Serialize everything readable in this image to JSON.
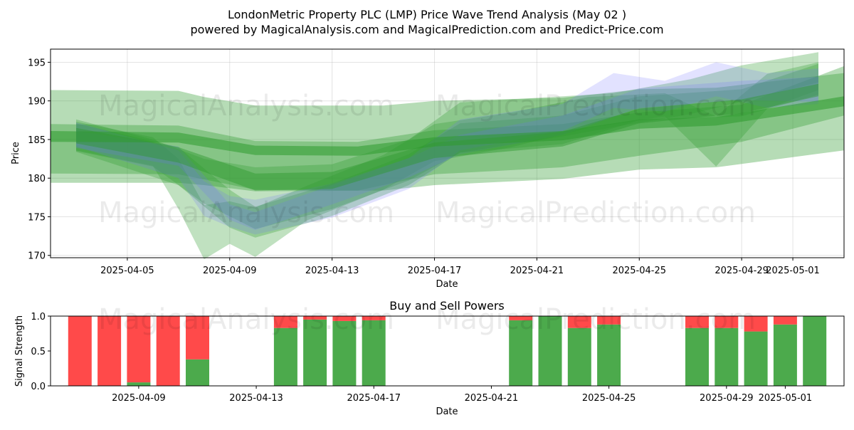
{
  "figure": {
    "title_line1": "LondonMetric Property PLC (LMP) Price Wave Trend Analysis (May 02 )",
    "title_line2": "powered by MagicalAnalysis.com and MagicalPrediction.com and Predict-Price.com",
    "watermarks": [
      "MagicalAnalysis.com",
      "MagicalPrediction.com"
    ]
  },
  "chart_data": [
    {
      "type": "area",
      "xlabel": "Date",
      "ylabel": "Price",
      "xlim": [
        "2025-04-02",
        "2025-05-03"
      ],
      "ylim": [
        169.7,
        196.7
      ],
      "y_ticks": [
        170,
        175,
        180,
        185,
        190,
        195
      ],
      "x_ticks": [
        "2025-04-05",
        "2025-04-09",
        "2025-04-13",
        "2025-04-17",
        "2025-04-21",
        "2025-04-25",
        "2025-04-29",
        "2025-05-01"
      ],
      "grid": true,
      "colors": {
        "green": "#2e9a2e",
        "blue": "#7070ff"
      },
      "series": [
        {
          "color": "green",
          "opacity": 0.35,
          "x": [
            "2025-04-02",
            "2025-04-07",
            "2025-04-08",
            "2025-04-10",
            "2025-04-15",
            "2025-04-17",
            "2025-04-22",
            "2025-04-25",
            "2025-04-28",
            "2025-05-03"
          ],
          "upper": [
            191.4,
            191.3,
            190.5,
            189.4,
            189.4,
            190.0,
            190.4,
            191.5,
            191.7,
            193.6
          ],
          "lower": [
            179.4,
            179.4,
            179.1,
            178.3,
            178.4,
            179.1,
            179.9,
            181.1,
            181.4,
            183.6
          ]
        },
        {
          "color": "green",
          "opacity": 0.35,
          "x": [
            "2025-04-02",
            "2025-04-07",
            "2025-04-10",
            "2025-04-14",
            "2025-04-17",
            "2025-04-22",
            "2025-04-25",
            "2025-04-29",
            "2025-05-03"
          ],
          "upper": [
            187.0,
            186.8,
            184.8,
            184.7,
            186.2,
            187.0,
            188.5,
            189.5,
            194.5
          ],
          "lower": [
            180.6,
            180.5,
            178.5,
            178.4,
            180.5,
            181.4,
            182.9,
            184.7,
            188.1
          ]
        },
        {
          "color": "green",
          "opacity": 0.3,
          "x": [
            "2025-04-03",
            "2025-04-06",
            "2025-04-08",
            "2025-04-10",
            "2025-04-13",
            "2025-04-16",
            "2025-04-18",
            "2025-04-22",
            "2025-04-24",
            "2025-04-27",
            "2025-04-29",
            "2025-05-02"
          ],
          "upper": [
            187.6,
            185.0,
            182.5,
            181.4,
            181.8,
            185.0,
            189.8,
            190.6,
            191.0,
            192.8,
            194.6,
            196.3
          ],
          "lower": [
            183.5,
            181.5,
            176.7,
            173.4,
            176.0,
            179.7,
            183.3,
            185.4,
            186.6,
            188.3,
            189.9,
            192.4
          ]
        },
        {
          "color": "green",
          "opacity": 0.3,
          "x": [
            "2025-04-03",
            "2025-04-06",
            "2025-04-07",
            "2025-04-08",
            "2025-04-09",
            "2025-04-10",
            "2025-04-12",
            "2025-04-15",
            "2025-04-17",
            "2025-04-20",
            "2025-04-23",
            "2025-04-26",
            "2025-04-28",
            "2025-04-30",
            "2025-05-02"
          ],
          "upper": [
            187.3,
            185.3,
            182.5,
            176.5,
            177.0,
            176.2,
            179.0,
            183.0,
            187.0,
            188.5,
            190.5,
            191.0,
            188.0,
            193.5,
            195.0
          ],
          "lower": [
            183.6,
            181.6,
            176.0,
            169.5,
            171.5,
            169.8,
            174.5,
            178.5,
            182.2,
            184.0,
            186.5,
            188.0,
            181.5,
            189.0,
            191.4
          ]
        },
        {
          "color": "green",
          "opacity": 0.3,
          "x": [
            "2025-04-03",
            "2025-04-07",
            "2025-04-09",
            "2025-04-10",
            "2025-04-13",
            "2025-04-16",
            "2025-04-18",
            "2025-04-22",
            "2025-04-25",
            "2025-04-29",
            "2025-05-02"
          ],
          "upper": [
            187.1,
            184.0,
            178.5,
            176.3,
            179.3,
            183.1,
            187.1,
            188.1,
            190.6,
            191.5,
            194.8
          ],
          "lower": [
            183.4,
            179.1,
            173.6,
            172.3,
            175.1,
            179.1,
            183.3,
            184.4,
            187.5,
            188.0,
            190.8
          ]
        },
        {
          "color": "blue",
          "opacity": 0.2,
          "x": [
            "2025-04-03",
            "2025-04-07",
            "2025-04-08",
            "2025-04-09",
            "2025-04-10",
            "2025-04-13",
            "2025-04-16",
            "2025-04-18",
            "2025-04-22",
            "2025-04-24",
            "2025-04-26",
            "2025-04-28",
            "2025-04-30",
            "2025-05-02"
          ],
          "upper": [
            187.2,
            183.6,
            179.6,
            177.7,
            177.2,
            179.3,
            182.6,
            187.6,
            189.6,
            193.6,
            192.6,
            195.0,
            193.6,
            194.2
          ],
          "lower": [
            184.1,
            180.0,
            175.1,
            173.7,
            172.7,
            174.9,
            178.6,
            183.6,
            186.1,
            189.1,
            188.6,
            190.6,
            189.1,
            189.6
          ]
        },
        {
          "color": "blue",
          "opacity": 0.2,
          "x": [
            "2025-04-03",
            "2025-04-07",
            "2025-04-09",
            "2025-04-10",
            "2025-04-13",
            "2025-04-16",
            "2025-04-18",
            "2025-04-22",
            "2025-04-25",
            "2025-04-29",
            "2025-05-02"
          ],
          "upper": [
            186.1,
            184.1,
            176.6,
            175.6,
            179.1,
            182.6,
            185.6,
            188.1,
            191.6,
            192.6,
            193.1
          ],
          "lower": [
            183.9,
            181.6,
            174.6,
            173.3,
            176.6,
            180.1,
            183.1,
            185.6,
            189.1,
            190.1,
            189.9
          ]
        },
        {
          "color": "green",
          "opacity": 0.55,
          "x": [
            "2025-04-02",
            "2025-04-07",
            "2025-04-10",
            "2025-04-14",
            "2025-04-17",
            "2025-04-22",
            "2025-04-25",
            "2025-04-28",
            "2025-05-03"
          ],
          "upper": [
            186.1,
            185.9,
            184.2,
            184.1,
            185.3,
            186.1,
            187.6,
            187.9,
            190.6
          ],
          "lower": [
            184.7,
            184.6,
            183.0,
            182.9,
            184.1,
            184.9,
            186.4,
            186.8,
            189.3
          ]
        },
        {
          "color": "green",
          "opacity": 0.45,
          "x": [
            "2025-04-03",
            "2025-04-07",
            "2025-04-10",
            "2025-04-13",
            "2025-04-17",
            "2025-04-22",
            "2025-04-25",
            "2025-04-29",
            "2025-05-02"
          ],
          "upper": [
            186.5,
            184.0,
            180.6,
            180.8,
            184.6,
            186.0,
            189.0,
            190.2,
            192.2
          ],
          "lower": [
            184.5,
            182.0,
            178.4,
            178.6,
            182.6,
            184.1,
            187.1,
            188.4,
            190.6
          ]
        }
      ]
    },
    {
      "type": "bar",
      "title": "Buy and Sell Powers",
      "xlabel": "Date",
      "ylabel": "Signal Strength",
      "ylim": [
        0,
        1
      ],
      "y_ticks": [
        "0.0",
        "0.5",
        "1.0"
      ],
      "x_ticks": [
        "2025-04-09",
        "2025-04-13",
        "2025-04-17",
        "2025-04-21",
        "2025-04-25",
        "2025-04-29",
        "2025-05-01"
      ],
      "xlim": [
        "2025-04-06",
        "2025-05-03"
      ],
      "colors": {
        "buy": "#4caa4c",
        "sell": "#ff4a4a"
      },
      "x": [
        "2025-04-07",
        "2025-04-08",
        "2025-04-09",
        "2025-04-10",
        "2025-04-11",
        "2025-04-14",
        "2025-04-15",
        "2025-04-16",
        "2025-04-17",
        "2025-04-22",
        "2025-04-23",
        "2025-04-24",
        "2025-04-25",
        "2025-04-28",
        "2025-04-29",
        "2025-04-30",
        "2025-05-01",
        "2025-05-02"
      ],
      "buy": [
        0.0,
        0.0,
        0.05,
        0.0,
        0.38,
        0.83,
        0.95,
        0.93,
        0.94,
        0.94,
        1.0,
        0.83,
        0.88,
        0.83,
        0.83,
        0.78,
        0.88,
        1.0
      ],
      "sell": [
        1.0,
        1.0,
        0.95,
        1.0,
        0.62,
        0.17,
        0.05,
        0.07,
        0.06,
        0.06,
        0.0,
        0.17,
        0.12,
        0.17,
        0.17,
        0.22,
        0.12,
        0.0
      ]
    }
  ]
}
